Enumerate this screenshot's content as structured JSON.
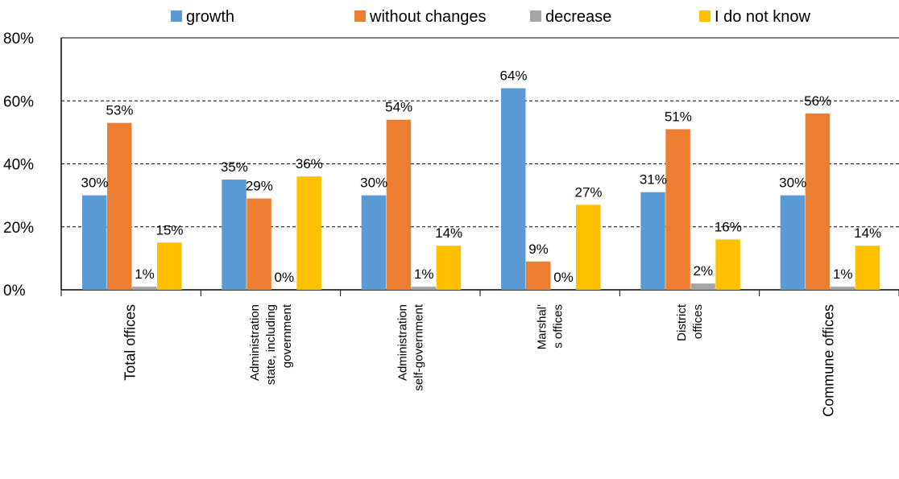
{
  "chart_data": {
    "type": "bar",
    "title": "",
    "xlabel": "",
    "ylabel": "",
    "ylim": [
      0,
      80
    ],
    "yticks": [
      "80%",
      "60%",
      "40%",
      "20%",
      "0%"
    ],
    "grid": "dashed-horizontal",
    "legend_position": "top",
    "categories": [
      [
        "Total offices"
      ],
      [
        "Administration",
        "state, including",
        "government"
      ],
      [
        "Administration",
        "self-government"
      ],
      [
        "Marshal'",
        "s offices"
      ],
      [
        "District",
        "offices"
      ],
      [
        "Commune offices"
      ]
    ],
    "series": [
      {
        "name": "growth",
        "color": "#5B9BD5",
        "values": [
          30,
          35,
          30,
          64,
          31,
          30
        ],
        "labels": [
          "30%",
          "35%",
          "30%",
          "64%",
          "31%",
          "30%"
        ]
      },
      {
        "name": "without changes",
        "color": "#ED7D31",
        "values": [
          53,
          29,
          54,
          9,
          51,
          56
        ],
        "labels": [
          "53%",
          "29%",
          "54%",
          "9%",
          "51%",
          "56%"
        ]
      },
      {
        "name": "decrease",
        "color": "#A5A5A5",
        "values": [
          1,
          0,
          1,
          0,
          2,
          1
        ],
        "labels": [
          "1%",
          "0%",
          "1%",
          "0%",
          "2%",
          "1%"
        ]
      },
      {
        "name": "I do not know",
        "color": "#FFC000",
        "values": [
          15,
          36,
          14,
          27,
          16,
          14
        ],
        "labels": [
          "15%",
          "36%",
          "14%",
          "27%",
          "16%",
          "14%"
        ]
      }
    ]
  }
}
